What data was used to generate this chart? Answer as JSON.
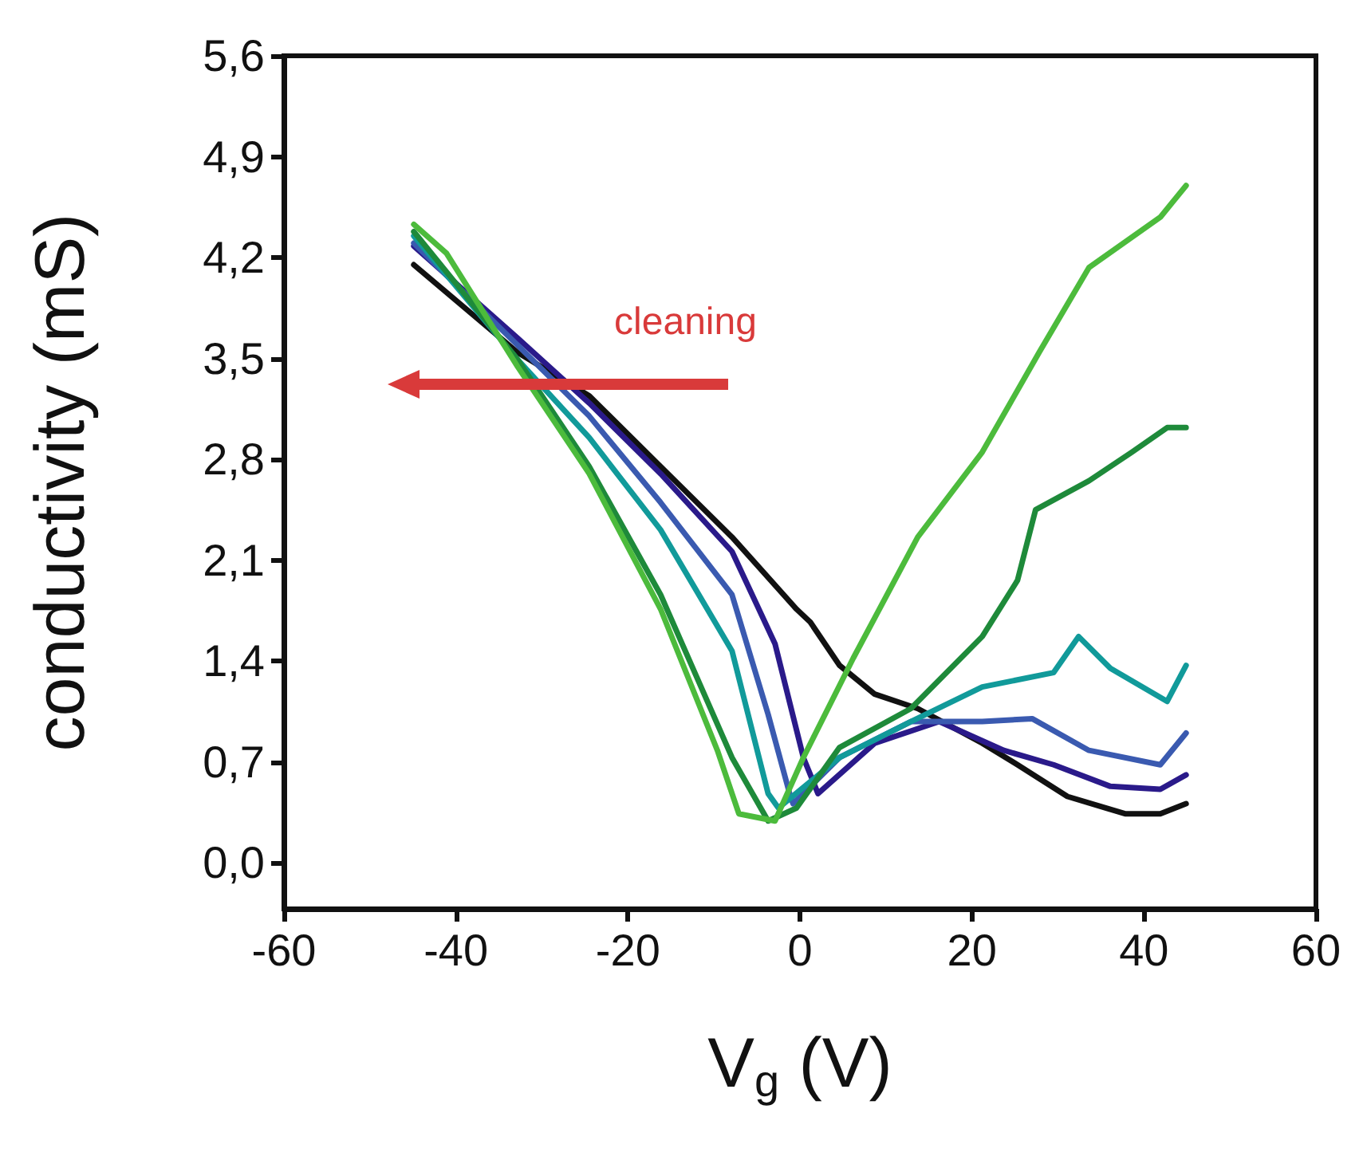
{
  "chart_data": {
    "type": "line",
    "xlabel": "V$_{g}$ (V)",
    "ylabel": "conductivity (mS)",
    "xlim": [
      -60,
      60
    ],
    "xticks": [
      -60,
      -40,
      -20,
      0,
      20,
      40,
      60
    ],
    "ylim": [
      -0.32,
      5.6
    ],
    "yticks": [
      {
        "value": 0,
        "label": "0,0"
      },
      {
        "value": 0.7,
        "label": "0,7"
      },
      {
        "value": 1.4,
        "label": "1,4"
      },
      {
        "value": 2.1,
        "label": "2,1"
      },
      {
        "value": 2.8,
        "label": "2,8"
      },
      {
        "value": 3.5,
        "label": "3,5"
      },
      {
        "value": 4.2,
        "label": "4,2"
      },
      {
        "value": 4.9,
        "label": "4,9"
      },
      {
        "value": 5.6,
        "label": "5,6"
      }
    ],
    "grid": false,
    "marker": "none",
    "line_style": "solid",
    "annotations": [
      "cleaning"
    ],
    "series": [
      {
        "color": "#111111",
        "x": [
          -44.9,
          -32.8,
          -24.5,
          -16.2,
          -7.9,
          -0.4,
          1.2,
          4.6,
          8.7,
          13.7,
          21.2,
          25.3,
          31.1,
          37.8,
          41.9,
          44.9
        ],
        "values": [
          4.15,
          3.54,
          3.24,
          2.75,
          2.26,
          1.76,
          1.67,
          1.37,
          1.17,
          1.07,
          0.83,
          0.68,
          0.46,
          0.34,
          0.34,
          0.41
        ]
      },
      {
        "color": "#2a1a8a",
        "x": [
          -44.9,
          -32.8,
          -24.5,
          -16.2,
          -7.9,
          -2.9,
          0.4,
          2.1,
          8.7,
          16.2,
          23.7,
          29.5,
          36.1,
          41.9,
          44.9
        ],
        "values": [
          4.28,
          3.64,
          3.19,
          2.7,
          2.16,
          1.52,
          0.73,
          0.48,
          0.83,
          0.98,
          0.78,
          0.68,
          0.53,
          0.51,
          0.61
        ]
      },
      {
        "color": "#3a5ab0",
        "x": [
          -44.9,
          -32.8,
          -24.5,
          -16.2,
          -7.9,
          -3.7,
          -1.2,
          -0.8,
          4.6,
          12.9,
          21.2,
          27,
          33.6,
          41.9,
          44.9
        ],
        "values": [
          4.3,
          3.59,
          3.1,
          2.5,
          1.86,
          1.03,
          0.48,
          0.41,
          0.73,
          0.98,
          0.98,
          1.0,
          0.78,
          0.68,
          0.9
        ]
      },
      {
        "color": "#119a9a",
        "x": [
          -44.9,
          -32.8,
          -24.5,
          -16.2,
          -7.9,
          -3.7,
          -2.5,
          4.6,
          12.9,
          21.2,
          29.5,
          32.4,
          36.1,
          42.7,
          44.9
        ],
        "values": [
          4.35,
          3.49,
          2.95,
          2.31,
          1.47,
          0.48,
          0.38,
          0.73,
          0.98,
          1.22,
          1.32,
          1.57,
          1.35,
          1.12,
          1.37
        ]
      },
      {
        "color": "#1e8a3a",
        "x": [
          -44.9,
          -32.8,
          -24.5,
          -16.2,
          -7.9,
          -3.7,
          -0.4,
          4.6,
          12.9,
          21.2,
          25.3,
          27.4,
          33.6,
          38.6,
          42.7,
          44.9
        ],
        "values": [
          4.38,
          3.49,
          2.75,
          1.86,
          0.73,
          0.29,
          0.38,
          0.8,
          1.07,
          1.57,
          1.96,
          2.45,
          2.65,
          2.85,
          3.02,
          3.02
        ]
      },
      {
        "color": "#4cbb3c",
        "x": [
          -44.9,
          -41.1,
          -32.8,
          -24.5,
          -16.2,
          -9.6,
          -7.1,
          -2.9,
          0.4,
          6.2,
          13.7,
          21.2,
          27.8,
          33.6,
          41.9,
          44.9
        ],
        "values": [
          4.43,
          4.23,
          3.44,
          2.7,
          1.76,
          0.78,
          0.34,
          0.29,
          0.73,
          1.42,
          2.26,
          2.85,
          3.54,
          4.13,
          4.48,
          4.7
        ]
      }
    ]
  }
}
